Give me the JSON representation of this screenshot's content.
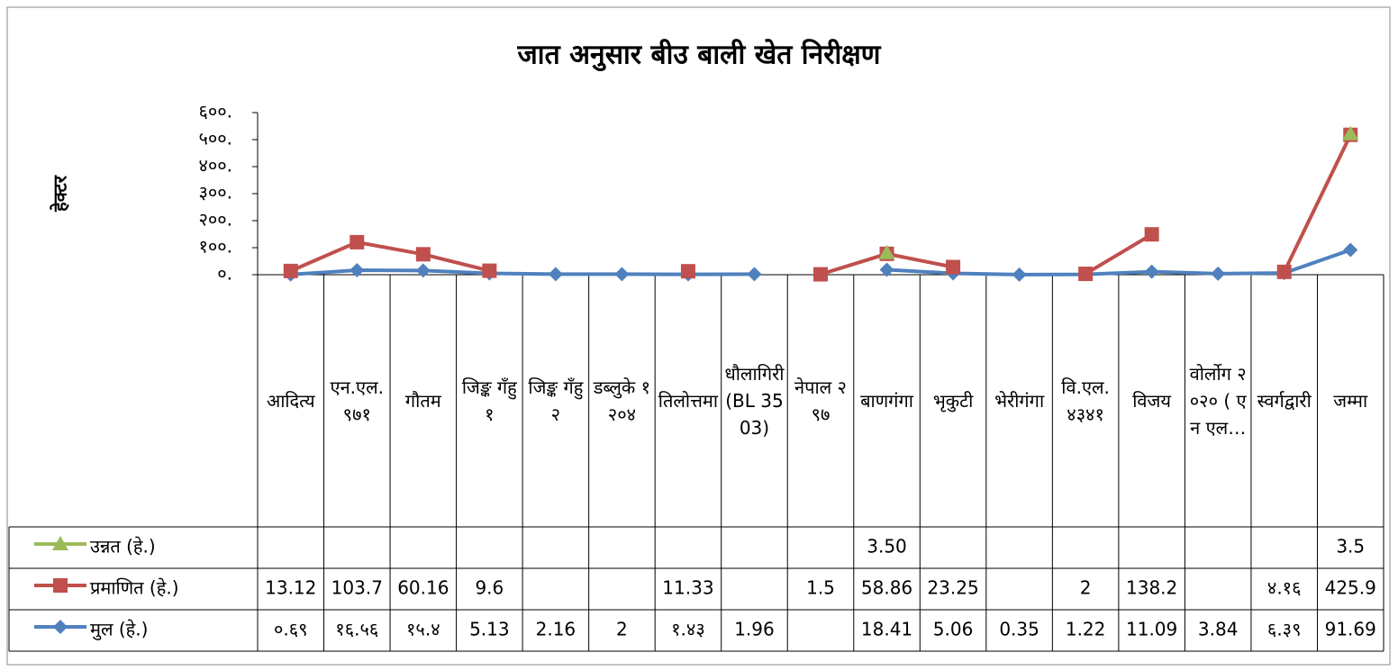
{
  "chart_data": {
    "type": "line",
    "stacked": true,
    "title": "जात अनुसार बीउ बाली खेत निरीक्षण",
    "y_label": "हेक्टर",
    "categories": [
      "आदित्य",
      "एन.एल. ९७१",
      "गौतम",
      "जिङ्क गँहु १",
      "जिङ्क गँहु २",
      "डब्लुके १२०४",
      "तिलोत्तमा",
      "धौलागिरी (BL 3503)",
      "नेपाल २९७",
      "बाणगंगा",
      "भृकुटी",
      "भेरीगंगा",
      "वि.एल. ४३४१",
      "विजय",
      "वोर्लोग २०२० ( एन एल…",
      "स्वर्गद्वारी",
      "जम्मा"
    ],
    "series": [
      {
        "name": "मुल (हे.)",
        "color": "#4f81bd",
        "marker": "diamond",
        "values": [
          0.69,
          16.56,
          15.4,
          5.13,
          2.16,
          2,
          1.43,
          1.96,
          null,
          18.41,
          5.06,
          0.35,
          1.22,
          11.09,
          3.84,
          6.39,
          91.69
        ],
        "value_labels": [
          "०.६९",
          "१६.५६",
          "१५.४",
          "5.13",
          "2.16",
          "2",
          "१.४३",
          "1.96",
          null,
          "18.41",
          "5.06",
          "0.35",
          "1.22",
          "11.09",
          "3.84",
          "६.३९",
          "91.69"
        ]
      },
      {
        "name": "प्रमाणित (हे.)",
        "color": "#c0504d",
        "marker": "square",
        "values": [
          13.12,
          103.7,
          60.16,
          9.6,
          null,
          null,
          11.33,
          null,
          1.5,
          58.86,
          23.25,
          null,
          2,
          138.2,
          null,
          4.16,
          425.9
        ],
        "value_labels": [
          "13.12",
          "103.7",
          "60.16",
          "9.6",
          null,
          null,
          "11.33",
          null,
          "1.5",
          "58.86",
          "23.25",
          null,
          "2",
          "138.2",
          null,
          "४.१६",
          "425.9"
        ]
      },
      {
        "name": "उन्नत (हे.)",
        "color": "#9bbb59",
        "marker": "triangle",
        "values": [
          null,
          null,
          null,
          null,
          null,
          null,
          null,
          null,
          null,
          3.5,
          null,
          null,
          null,
          null,
          null,
          null,
          3.5
        ],
        "value_labels": [
          null,
          null,
          null,
          null,
          null,
          null,
          null,
          null,
          null,
          "3.50",
          null,
          null,
          null,
          null,
          null,
          null,
          "3.5"
        ]
      }
    ],
    "ylim": [
      0,
      600
    ],
    "yticks": [
      {
        "value": 0,
        "label": "०."
      },
      {
        "value": 100,
        "label": "१००."
      },
      {
        "value": 200,
        "label": "२००."
      },
      {
        "value": 300,
        "label": "३००."
      },
      {
        "value": 400,
        "label": "४००."
      },
      {
        "value": 500,
        "label": "५००."
      },
      {
        "value": 600,
        "label": "६००."
      }
    ],
    "grid": false
  }
}
